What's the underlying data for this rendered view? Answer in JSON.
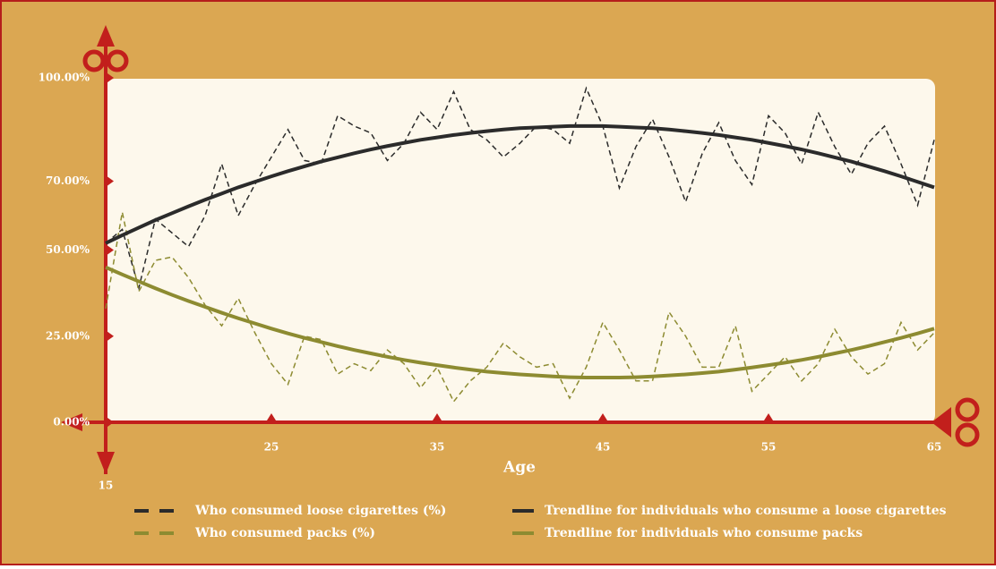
{
  "chart_data": {
    "type": "line",
    "x_label": "Age",
    "x": [
      15,
      16,
      17,
      18,
      19,
      20,
      21,
      22,
      23,
      24,
      25,
      26,
      27,
      28,
      29,
      30,
      31,
      32,
      33,
      34,
      35,
      36,
      37,
      38,
      39,
      40,
      41,
      42,
      43,
      44,
      45,
      46,
      47,
      48,
      49,
      50,
      51,
      52,
      53,
      54,
      55,
      56,
      57,
      58,
      59,
      60,
      61,
      62,
      63,
      64,
      65
    ],
    "xlim": [
      15,
      65
    ],
    "xticks": [
      15,
      25,
      35,
      45,
      55,
      65
    ],
    "ylim": [
      0,
      100
    ],
    "yticks": [
      {
        "value": 0,
        "label": "0.00%"
      },
      {
        "value": 25,
        "label": "25.00%"
      },
      {
        "value": 50,
        "label": "50.00%"
      },
      {
        "value": 70,
        "label": "70.00%"
      },
      {
        "value": 100,
        "label": "100.00%"
      }
    ],
    "series": [
      {
        "name": "Who consumed loose cigarettes (%)",
        "color": "#2b2b2b",
        "dashed": true,
        "values": [
          52,
          56,
          39,
          59,
          55,
          51,
          60,
          75,
          60,
          69,
          77,
          85,
          76,
          75,
          89,
          86,
          84,
          76,
          81,
          90,
          85,
          96,
          85,
          82,
          77,
          81,
          86,
          85,
          81,
          97,
          86,
          68,
          80,
          88,
          77,
          64,
          78,
          87,
          76,
          69,
          89,
          84,
          75,
          90,
          80,
          72,
          81,
          86,
          75,
          63,
          82
        ]
      },
      {
        "name": "Who consumed packs (%)",
        "color": "#8d8b31",
        "dashed": true,
        "values": [
          33,
          61,
          38,
          47,
          48,
          42,
          34,
          28,
          36,
          26,
          17,
          11,
          25,
          24,
          14,
          17,
          15,
          21,
          17,
          10,
          16,
          6,
          12,
          16,
          23,
          19,
          16,
          17,
          7,
          16,
          29,
          21,
          12,
          12,
          32,
          25,
          16,
          16,
          28,
          9,
          14,
          19,
          12,
          17,
          27,
          19,
          14,
          17,
          29,
          21,
          26
        ]
      },
      {
        "name": "Trendline for individuals who consume a loose cigarettes",
        "color": "#2b2b2b",
        "dashed": false,
        "values": [
          52.0,
          54.3,
          56.5,
          58.7,
          60.7,
          62.7,
          64.6,
          66.4,
          68.2,
          69.8,
          71.4,
          72.9,
          74.3,
          75.7,
          76.9,
          78.1,
          79.2,
          80.2,
          81.1,
          82.0,
          82.7,
          83.4,
          84.0,
          84.5,
          85.0,
          85.4,
          85.6,
          85.8,
          86.0,
          86.0,
          86.0,
          85.8,
          85.6,
          85.4,
          85.0,
          84.5,
          84.0,
          83.4,
          82.7,
          82.0,
          81.1,
          80.2,
          79.2,
          78.1,
          76.9,
          75.7,
          74.3,
          72.9,
          71.4,
          69.8,
          68.2
        ]
      },
      {
        "name": "Trendline for individuals who consume packs",
        "color": "#8d8b31",
        "dashed": false,
        "values": [
          45.0,
          42.9,
          40.9,
          38.9,
          37.0,
          35.2,
          33.5,
          31.8,
          30.2,
          28.7,
          27.2,
          25.8,
          24.5,
          23.3,
          22.1,
          21.0,
          20.0,
          19.0,
          18.1,
          17.3,
          16.6,
          15.9,
          15.3,
          14.7,
          14.3,
          13.9,
          13.6,
          13.3,
          13.1,
          13.0,
          13.0,
          13.0,
          13.1,
          13.3,
          13.6,
          13.9,
          14.3,
          14.7,
          15.3,
          15.9,
          16.6,
          17.3,
          18.1,
          19.0,
          20.0,
          21.0,
          22.1,
          23.3,
          24.5,
          25.8,
          27.2
        ]
      }
    ]
  }
}
